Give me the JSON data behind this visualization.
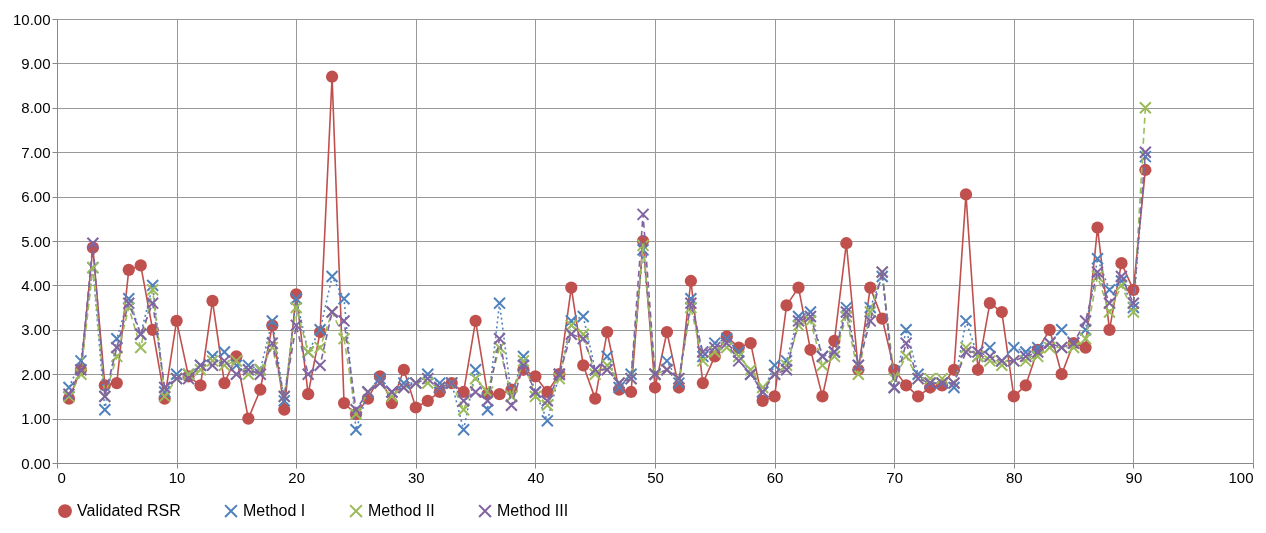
{
  "chart_data": {
    "type": "line",
    "xlim": [
      0,
      100
    ],
    "xticks": [
      0,
      10,
      20,
      30,
      40,
      50,
      60,
      70,
      80,
      90,
      100
    ],
    "ylim": [
      0,
      10
    ],
    "yticks": [
      {
        "value": 0,
        "label": "0.00"
      },
      {
        "value": 1,
        "label": "1.00"
      },
      {
        "value": 2,
        "label": "2.00"
      },
      {
        "value": 3,
        "label": "3.00"
      },
      {
        "value": 4,
        "label": "4.00"
      },
      {
        "value": 5,
        "label": "5.00"
      },
      {
        "value": 6,
        "label": "6.00"
      },
      {
        "value": 7,
        "label": "7.00"
      },
      {
        "value": 8,
        "label": "8.00"
      },
      {
        "value": 9,
        "label": "9.00"
      },
      {
        "value": 10,
        "label": "10.00"
      }
    ],
    "grid": true,
    "legend": "bottom",
    "x": [
      1,
      2,
      3,
      4,
      5,
      6,
      7,
      8,
      9,
      10,
      11,
      12,
      13,
      14,
      15,
      16,
      17,
      18,
      19,
      20,
      21,
      22,
      23,
      24,
      25,
      26,
      27,
      28,
      29,
      30,
      31,
      32,
      33,
      34,
      35,
      36,
      37,
      38,
      39,
      40,
      41,
      42,
      43,
      44,
      45,
      46,
      47,
      48,
      49,
      50,
      51,
      52,
      53,
      54,
      55,
      56,
      57,
      58,
      59,
      60,
      61,
      62,
      63,
      64,
      65,
      66,
      67,
      68,
      69,
      70,
      71,
      72,
      73,
      74,
      75,
      76,
      77,
      78,
      79,
      80,
      81,
      82,
      83,
      84,
      85,
      86,
      87,
      88,
      89,
      90,
      91
    ],
    "series": [
      {
        "name": "Validated RSR",
        "color": "#c0504d",
        "marker": "circle",
        "line_style": "solid",
        "values": [
          1.45,
          2.1,
          4.85,
          1.75,
          1.8,
          4.35,
          4.45,
          3.0,
          1.45,
          3.2,
          1.95,
          1.75,
          3.65,
          1.8,
          2.4,
          1.0,
          1.65,
          3.1,
          1.2,
          3.8,
          1.55,
          2.95,
          8.7,
          1.35,
          1.1,
          1.45,
          1.95,
          1.35,
          2.1,
          1.25,
          1.4,
          1.6,
          1.8,
          1.6,
          3.2,
          1.55,
          1.55,
          1.65,
          2.1,
          1.95,
          1.6,
          2.0,
          3.95,
          2.2,
          1.45,
          2.95,
          1.65,
          1.6,
          5.0,
          1.7,
          2.95,
          1.7,
          4.1,
          1.8,
          2.4,
          2.85,
          2.6,
          2.7,
          1.4,
          1.5,
          3.55,
          3.95,
          2.55,
          1.5,
          2.75,
          4.95,
          2.1,
          3.95,
          3.25,
          2.1,
          1.75,
          1.5,
          1.7,
          1.75,
          2.1,
          6.05,
          2.1,
          3.6,
          3.4,
          1.5,
          1.75,
          2.55,
          3.0,
          2.0,
          2.7,
          2.6,
          5.3,
          3.0,
          4.5,
          3.9,
          6.6
        ]
      },
      {
        "name": "Method I",
        "color": "#4f81bd",
        "marker": "cross",
        "line_style": "dotted",
        "values": [
          1.7,
          2.3,
          4.4,
          1.2,
          2.8,
          3.7,
          2.9,
          4.0,
          1.6,
          2.0,
          2.0,
          2.2,
          2.4,
          2.5,
          2.2,
          2.2,
          2.1,
          3.2,
          1.4,
          3.7,
          2.5,
          3.0,
          4.2,
          3.7,
          0.75,
          1.6,
          1.9,
          1.6,
          1.8,
          1.8,
          2.0,
          1.8,
          1.8,
          0.75,
          2.1,
          1.2,
          3.6,
          1.5,
          2.4,
          1.6,
          0.95,
          2.0,
          3.2,
          3.3,
          2.1,
          2.4,
          1.7,
          2.0,
          4.8,
          2.0,
          2.3,
          1.8,
          3.7,
          2.4,
          2.7,
          2.8,
          2.5,
          2.0,
          1.6,
          2.2,
          2.3,
          3.3,
          3.4,
          2.4,
          2.5,
          3.5,
          2.2,
          3.5,
          4.2,
          1.7,
          3.0,
          2.0,
          1.8,
          1.8,
          1.7,
          3.2,
          2.4,
          2.6,
          2.3,
          2.6,
          2.5,
          2.6,
          2.7,
          3.0,
          2.7,
          3.0,
          4.6,
          3.9,
          4.1,
          3.5,
          6.9
        ]
      },
      {
        "name": "Method II",
        "color": "#9bbb59",
        "marker": "cross",
        "line_style": "dashed",
        "values": [
          1.5,
          2.0,
          4.4,
          1.5,
          2.4,
          3.5,
          2.6,
          3.9,
          1.5,
          1.9,
          2.0,
          2.1,
          2.3,
          2.2,
          2.3,
          2.0,
          2.1,
          2.6,
          1.5,
          3.5,
          2.5,
          2.6,
          3.4,
          2.8,
          1.1,
          1.6,
          1.8,
          1.5,
          1.7,
          1.8,
          1.8,
          1.7,
          1.8,
          1.2,
          1.9,
          1.6,
          2.6,
          1.5,
          2.3,
          1.5,
          1.3,
          1.9,
          3.1,
          2.9,
          2.0,
          2.2,
          1.8,
          1.9,
          4.9,
          2.0,
          2.1,
          1.9,
          3.5,
          2.3,
          2.5,
          2.6,
          2.4,
          2.1,
          1.7,
          2.0,
          2.2,
          3.1,
          3.2,
          2.2,
          2.4,
          3.3,
          2.0,
          3.4,
          4.3,
          1.9,
          2.4,
          1.9,
          1.9,
          1.9,
          1.8,
          2.6,
          2.4,
          2.3,
          2.2,
          2.3,
          2.3,
          2.4,
          2.6,
          2.6,
          2.6,
          2.8,
          4.2,
          3.4,
          4.0,
          3.4,
          8.0
        ]
      },
      {
        "name": "Method III",
        "color": "#8064a2",
        "marker": "cross",
        "line_style": "dashed",
        "values": [
          1.55,
          2.1,
          4.95,
          1.5,
          2.6,
          3.6,
          2.9,
          3.6,
          1.7,
          1.9,
          1.9,
          2.2,
          2.2,
          2.3,
          2.0,
          2.1,
          2.0,
          2.7,
          1.5,
          3.1,
          2.0,
          2.2,
          3.4,
          3.2,
          1.2,
          1.6,
          1.8,
          1.6,
          1.7,
          1.8,
          1.9,
          1.7,
          1.8,
          1.4,
          1.6,
          1.4,
          2.8,
          1.3,
          2.2,
          1.6,
          1.4,
          2.0,
          2.9,
          2.8,
          2.1,
          2.1,
          1.8,
          1.9,
          5.6,
          2.0,
          2.1,
          1.9,
          3.6,
          2.5,
          2.6,
          2.7,
          2.3,
          2.0,
          1.6,
          2.0,
          2.1,
          3.2,
          3.3,
          2.4,
          2.5,
          3.4,
          2.2,
          3.2,
          4.3,
          1.7,
          2.7,
          1.9,
          1.8,
          1.8,
          1.8,
          2.5,
          2.5,
          2.4,
          2.3,
          2.3,
          2.4,
          2.5,
          2.7,
          2.6,
          2.7,
          3.2,
          4.3,
          3.6,
          4.2,
          3.6,
          7.0
        ]
      }
    ]
  }
}
